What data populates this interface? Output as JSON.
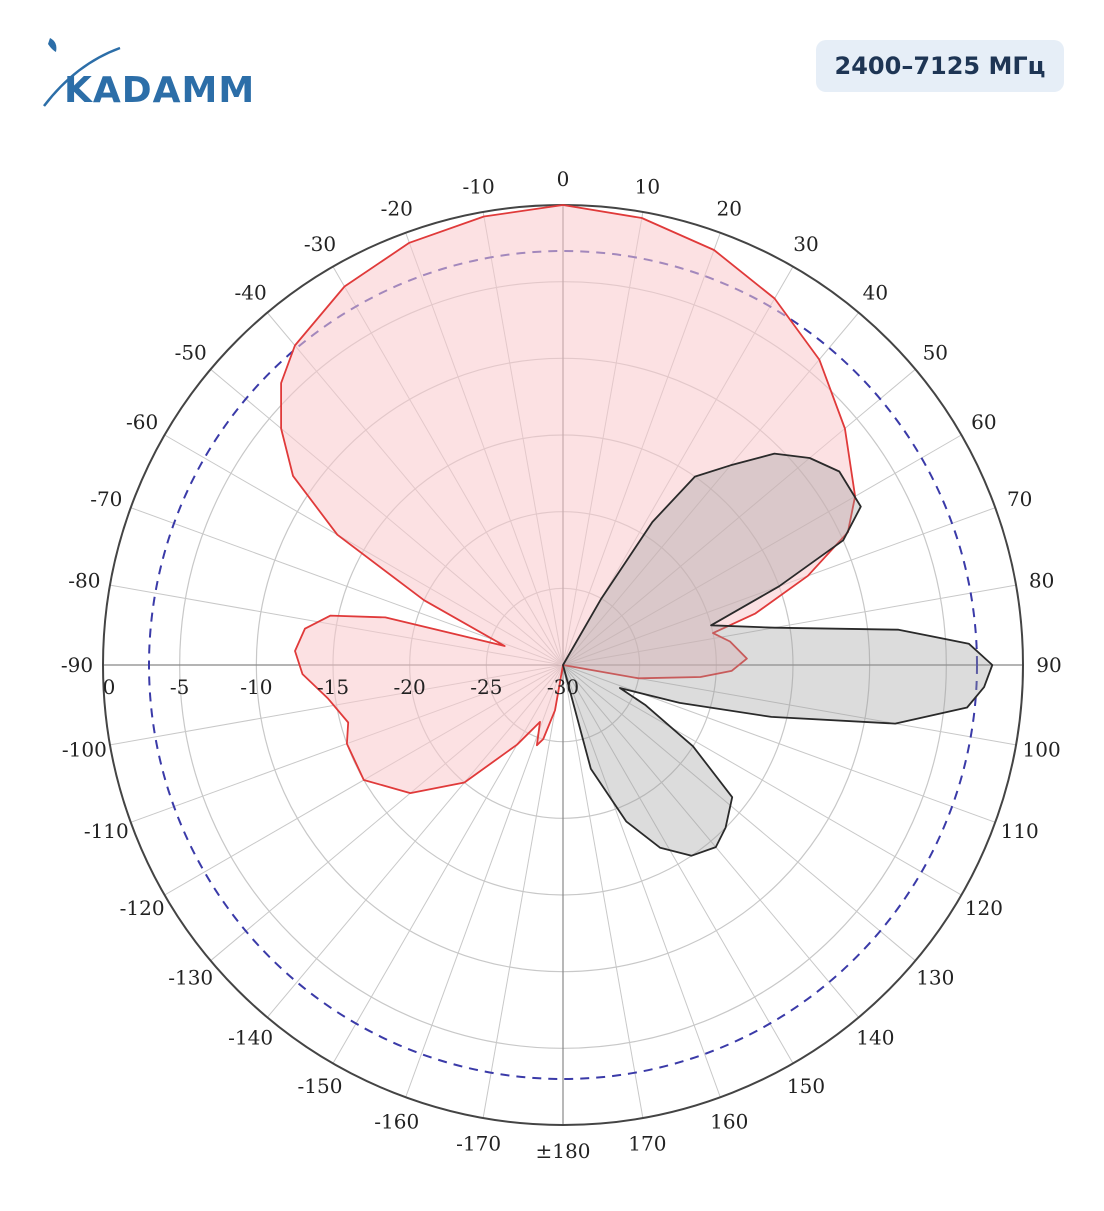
{
  "header": {
    "logo_text": "KADAMM",
    "band_label": "2400–7125 МГц"
  },
  "colors": {
    "logo": "#2c6ea8",
    "series_red_stroke": "#e03a3a",
    "series_red_fill": "#f9c9cc",
    "series_gray_stroke": "#2a2a2a",
    "series_gray_fill": "#9a9a9a",
    "reference_circle": "#3a3aa8",
    "grid": "#c8c8c8",
    "badge_bg": "#e6eef7",
    "badge_text": "#1e3554"
  },
  "chart_data": {
    "type": "polar",
    "angle_unit": "deg",
    "angle_zero": "top",
    "angle_direction": "clockwise",
    "radial_range": [
      -30,
      0
    ],
    "radial_ticks": [
      "0",
      "-5",
      "-10",
      "-15",
      "-20",
      "-25",
      "-30"
    ],
    "angle_ticks": [
      "0",
      "10",
      "20",
      "30",
      "40",
      "50",
      "60",
      "70",
      "80",
      "90",
      "100",
      "110",
      "120",
      "130",
      "140",
      "150",
      "160",
      "170",
      "±180",
      "-170",
      "-160",
      "-150",
      "-140",
      "-130",
      "-120",
      "-110",
      "-100",
      "-90",
      "-80",
      "-70",
      "-60",
      "-50",
      "-40",
      "-30",
      "-20",
      "-10"
    ],
    "reference_circle_level": -3,
    "series": [
      {
        "color": "red",
        "points": [
          [
            -180,
            -30
          ],
          [
            -170,
            -27
          ],
          [
            -165,
            -25
          ],
          [
            -162,
            -24.5
          ],
          [
            -158,
            -26
          ],
          [
            -150,
            -24
          ],
          [
            -140,
            -20
          ],
          [
            -130,
            -17
          ],
          [
            -120,
            -15
          ],
          [
            -110,
            -15
          ],
          [
            -105,
            -15.5
          ],
          [
            -98,
            -14.5
          ],
          [
            -92,
            -13
          ],
          [
            -87,
            -12.5
          ],
          [
            -82,
            -13
          ],
          [
            -78,
            -14.5
          ],
          [
            -75,
            -18
          ],
          [
            -72,
            -26
          ],
          [
            -65,
            -20
          ],
          [
            -60,
            -13
          ],
          [
            -55,
            -8.5
          ],
          [
            -50,
            -6
          ],
          [
            -45,
            -4
          ],
          [
            -40,
            -2.8
          ],
          [
            -30,
            -1.5
          ],
          [
            -20,
            -0.7
          ],
          [
            -10,
            -0.3
          ],
          [
            0,
            0
          ],
          [
            10,
            -0.4
          ],
          [
            20,
            -1.2
          ],
          [
            30,
            -2.4
          ],
          [
            40,
            -4
          ],
          [
            50,
            -6
          ],
          [
            60,
            -8
          ],
          [
            65,
            -9.5
          ],
          [
            70,
            -13
          ],
          [
            75,
            -17
          ],
          [
            78,
            -20
          ],
          [
            82,
            -19
          ],
          [
            88,
            -18
          ],
          [
            92,
            -19
          ],
          [
            95,
            -21
          ],
          [
            100,
            -25
          ],
          [
            110,
            -30
          ],
          [
            120,
            -30
          ],
          [
            140,
            -30
          ],
          [
            160,
            -30
          ],
          [
            180,
            -30
          ]
        ]
      },
      {
        "color": "gray",
        "points": [
          [
            0,
            -30
          ],
          [
            20,
            -30
          ],
          [
            30,
            -25
          ],
          [
            32,
            -19
          ],
          [
            35,
            -15
          ],
          [
            40,
            -13
          ],
          [
            45,
            -10.5
          ],
          [
            50,
            -9
          ],
          [
            55,
            -8
          ],
          [
            62,
            -8
          ],
          [
            66,
            -10
          ],
          [
            70,
            -15
          ],
          [
            75,
            -20
          ],
          [
            80,
            -16
          ],
          [
            84,
            -8
          ],
          [
            87,
            -3.5
          ],
          [
            90,
            -2
          ],
          [
            93,
            -2.5
          ],
          [
            96,
            -3.5
          ],
          [
            100,
            -8
          ],
          [
            104,
            -16
          ],
          [
            108,
            -22
          ],
          [
            112,
            -26
          ],
          [
            116,
            -24
          ],
          [
            122,
            -20
          ],
          [
            128,
            -16
          ],
          [
            135,
            -15
          ],
          [
            140,
            -14.5
          ],
          [
            146,
            -15
          ],
          [
            152,
            -16.5
          ],
          [
            158,
            -19
          ],
          [
            165,
            -23
          ],
          [
            172,
            -30
          ],
          [
            180,
            -30
          ]
        ]
      }
    ]
  }
}
